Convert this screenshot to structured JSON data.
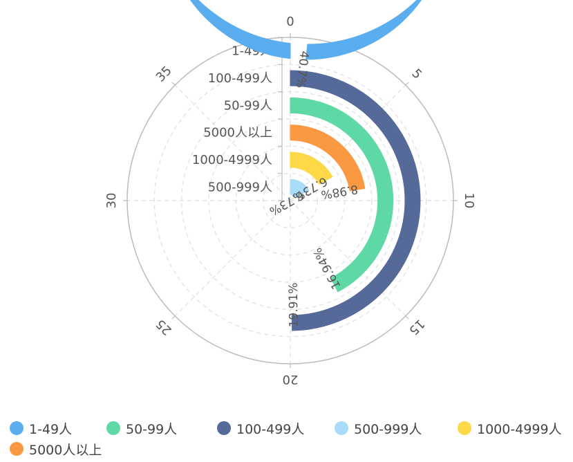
{
  "chart_data": {
    "type": "polar-bar",
    "angle_axis": {
      "min": 0,
      "max": 40,
      "ticks": [
        0,
        5,
        10,
        15,
        20,
        25,
        30,
        35
      ],
      "grid": true
    },
    "radius_axis": {
      "categories": [
        "500-999人",
        "1000-4999人",
        "5000人以上",
        "50-99人",
        "100-499人",
        "1-49人"
      ]
    },
    "series": [
      {
        "name": "1-49人",
        "value": 40.7,
        "label": "40.7%",
        "color": "#5aaef0"
      },
      {
        "name": "100-499人",
        "value": 19.91,
        "label": "19.91%",
        "color": "#566a99"
      },
      {
        "name": "50-99人",
        "value": 16.94,
        "label": "16.94%",
        "color": "#5ed9a6"
      },
      {
        "name": "5000人以上",
        "value": 8.98,
        "label": "8.98%",
        "color": "#fb9842"
      },
      {
        "name": "1000-4999人",
        "value": 6.73,
        "label": "6.73%",
        "color": "#fdd94a"
      },
      {
        "name": "500-999人",
        "value": 6.73,
        "label": "6.73%",
        "color": "#a9dcf8"
      }
    ],
    "legend": {
      "position": "bottom-left",
      "items": [
        {
          "label": "1-49人",
          "color": "#5aaef0"
        },
        {
          "label": "50-99人",
          "color": "#5ed9a6"
        },
        {
          "label": "100-499人",
          "color": "#566a99"
        },
        {
          "label": "500-999人",
          "color": "#a9dcf8"
        },
        {
          "label": "1000-4999人",
          "color": "#fdd94a"
        },
        {
          "label": "5000人以上",
          "color": "#fb9842"
        }
      ]
    }
  }
}
